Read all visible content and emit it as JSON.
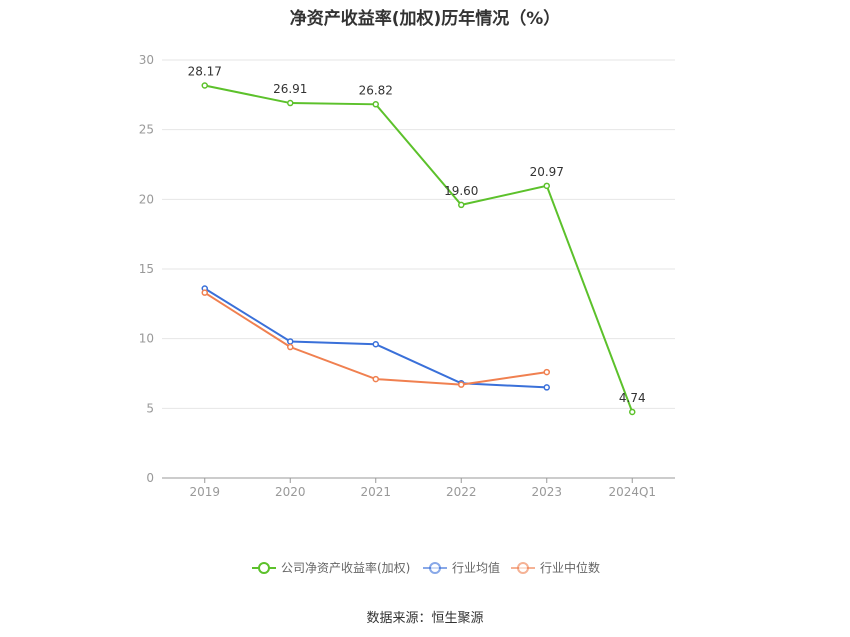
{
  "chart_data": {
    "type": "line",
    "title": "净资产收益率(加权)历年情况（%）",
    "categories": [
      "2019",
      "2020",
      "2021",
      "2022",
      "2023",
      "2024Q1"
    ],
    "ylim": [
      0,
      30
    ],
    "yticks": [
      0,
      5,
      10,
      15,
      20,
      25,
      30
    ],
    "grid": true,
    "legend_position": "bottom",
    "series": [
      {
        "name": "公司净资产收益率(加权)",
        "color": "#5cc12b",
        "values": [
          28.17,
          26.91,
          26.82,
          19.6,
          20.97,
          4.74
        ],
        "labels": [
          "28.17",
          "26.91",
          "26.82",
          "19.60",
          "20.97",
          "4.74"
        ]
      },
      {
        "name": "行业均值",
        "color": "#3a70d9",
        "values": [
          13.6,
          9.8,
          9.6,
          6.8,
          6.5,
          null
        ]
      },
      {
        "name": "行业中位数",
        "color": "#f08050",
        "values": [
          13.3,
          9.4,
          7.1,
          6.7,
          7.6,
          null
        ]
      }
    ]
  },
  "source": "数据来源：恒生聚源"
}
